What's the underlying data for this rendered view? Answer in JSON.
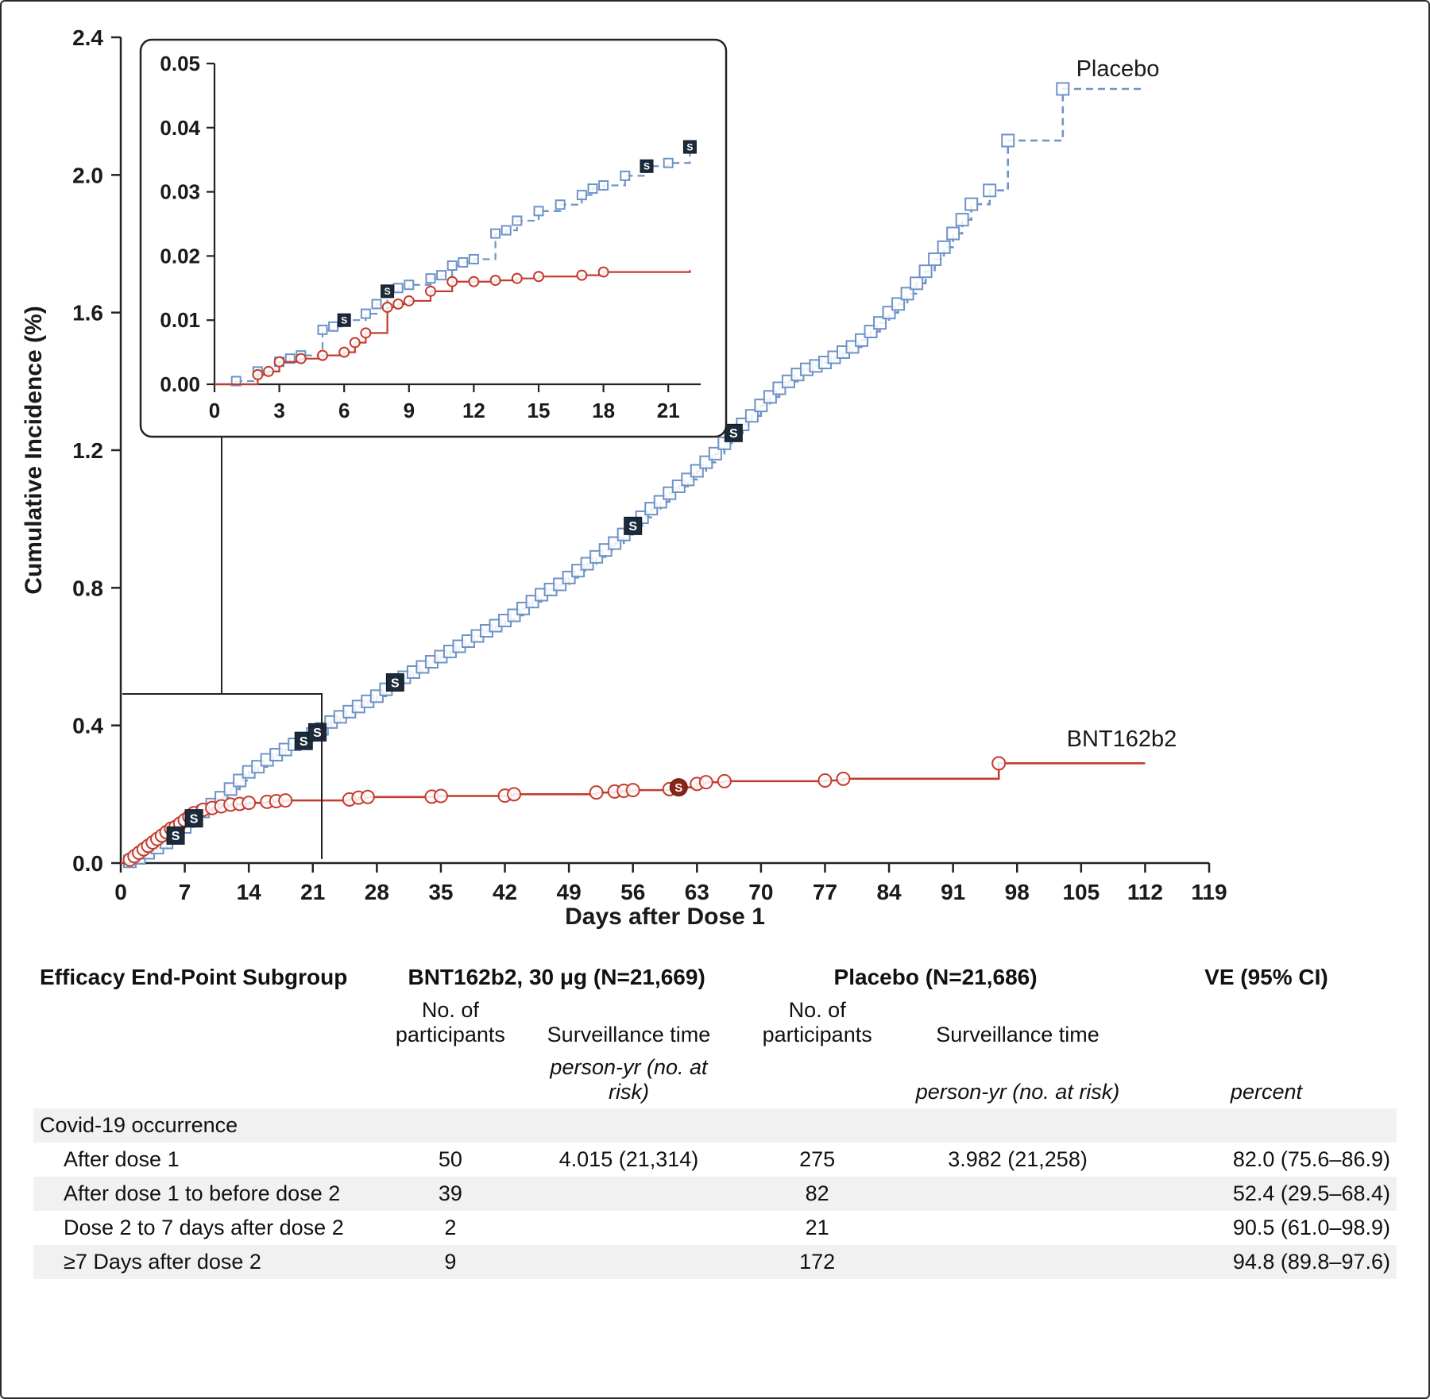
{
  "chart_data": {
    "type": "line",
    "title": "",
    "xlabel": "Days after Dose 1",
    "ylabel": "Cumulative Incidence (%)",
    "xlim": [
      0,
      119
    ],
    "ylim": [
      0,
      2.4
    ],
    "xticks": [
      0,
      7,
      14,
      21,
      28,
      35,
      42,
      49,
      56,
      63,
      70,
      77,
      84,
      91,
      98,
      105,
      112,
      119
    ],
    "yticks": [
      "0.0",
      "0.4",
      "0.8",
      "1.2",
      "1.6",
      "2.0",
      "2.4"
    ],
    "grid": false,
    "severe_marker_label": "S",
    "colors": {
      "placebo": "#6e93c6",
      "bnt": "#c43c2e",
      "severe_square": "#1c2b3a",
      "severe_circle": "#8a2619",
      "axis": "#222222"
    },
    "series": [
      {
        "name": "Placebo",
        "color": "#6e93c6",
        "line": "dashed",
        "marker": "square",
        "points": [
          [
            0,
            0
          ],
          [
            1,
            0.005
          ],
          [
            2,
            0.015
          ],
          [
            3,
            0.03
          ],
          [
            4,
            0.045
          ],
          [
            5,
            0.06
          ],
          [
            6,
            0.08
          ],
          [
            7,
            0.105
          ],
          [
            8,
            0.13
          ],
          [
            9,
            0.15
          ],
          [
            10,
            0.17
          ],
          [
            11,
            0.19
          ],
          [
            12,
            0.215
          ],
          [
            13,
            0.24
          ],
          [
            14,
            0.265
          ],
          [
            15,
            0.28
          ],
          [
            16,
            0.3
          ],
          [
            17,
            0.315
          ],
          [
            18,
            0.33
          ],
          [
            19,
            0.345
          ],
          [
            20,
            0.355
          ],
          [
            21,
            0.375
          ],
          [
            22,
            0.39
          ],
          [
            23,
            0.41
          ],
          [
            24,
            0.425
          ],
          [
            25,
            0.44
          ],
          [
            26,
            0.455
          ],
          [
            27,
            0.47
          ],
          [
            28,
            0.485
          ],
          [
            29,
            0.505
          ],
          [
            30,
            0.525
          ],
          [
            31,
            0.54
          ],
          [
            32,
            0.555
          ],
          [
            33,
            0.57
          ],
          [
            34,
            0.585
          ],
          [
            35,
            0.6
          ],
          [
            36,
            0.615
          ],
          [
            37,
            0.63
          ],
          [
            38,
            0.645
          ],
          [
            39,
            0.66
          ],
          [
            40,
            0.675
          ],
          [
            41,
            0.69
          ],
          [
            42,
            0.705
          ],
          [
            43,
            0.72
          ],
          [
            44,
            0.74
          ],
          [
            45,
            0.76
          ],
          [
            46,
            0.78
          ],
          [
            47,
            0.795
          ],
          [
            48,
            0.81
          ],
          [
            49,
            0.83
          ],
          [
            50,
            0.85
          ],
          [
            51,
            0.87
          ],
          [
            52,
            0.89
          ],
          [
            53,
            0.91
          ],
          [
            54,
            0.93
          ],
          [
            55,
            0.955
          ],
          [
            56,
            0.98
          ],
          [
            57,
            1.005
          ],
          [
            58,
            1.03
          ],
          [
            59,
            1.05
          ],
          [
            60,
            1.075
          ],
          [
            61,
            1.095
          ],
          [
            62,
            1.115
          ],
          [
            63,
            1.14
          ],
          [
            64,
            1.165
          ],
          [
            65,
            1.19
          ],
          [
            66,
            1.22
          ],
          [
            67,
            1.25
          ],
          [
            68,
            1.275
          ],
          [
            69,
            1.3
          ],
          [
            70,
            1.33
          ],
          [
            71,
            1.355
          ],
          [
            72,
            1.38
          ],
          [
            73,
            1.4
          ],
          [
            74,
            1.42
          ],
          [
            75,
            1.435
          ],
          [
            76,
            1.445
          ],
          [
            77,
            1.455
          ],
          [
            78,
            1.47
          ],
          [
            79,
            1.485
          ],
          [
            80,
            1.5
          ],
          [
            81,
            1.52
          ],
          [
            82,
            1.545
          ],
          [
            83,
            1.57
          ],
          [
            84,
            1.6
          ],
          [
            85,
            1.625
          ],
          [
            86,
            1.655
          ],
          [
            87,
            1.685
          ],
          [
            88,
            1.72
          ],
          [
            89,
            1.755
          ],
          [
            90,
            1.79
          ],
          [
            91,
            1.83
          ],
          [
            92,
            1.87
          ],
          [
            93,
            1.915
          ],
          [
            95,
            1.955
          ],
          [
            97,
            2.1
          ],
          [
            103,
            2.25
          ],
          [
            112,
            2.25
          ]
        ]
      },
      {
        "name": "BNT162b2",
        "color": "#c43c2e",
        "line": "solid",
        "marker": "circle",
        "points": [
          [
            0,
            0
          ],
          [
            1,
            0.01
          ],
          [
            1.5,
            0.02
          ],
          [
            2,
            0.03
          ],
          [
            2.5,
            0.04
          ],
          [
            3,
            0.05
          ],
          [
            3.5,
            0.06
          ],
          [
            4,
            0.07
          ],
          [
            4.5,
            0.08
          ],
          [
            5,
            0.09
          ],
          [
            5.5,
            0.1
          ],
          [
            6,
            0.105
          ],
          [
            6.5,
            0.115
          ],
          [
            7,
            0.125
          ],
          [
            7.5,
            0.135
          ],
          [
            8,
            0.145
          ],
          [
            9,
            0.155
          ],
          [
            10,
            0.16
          ],
          [
            11,
            0.165
          ],
          [
            12,
            0.17
          ],
          [
            13,
            0.172
          ],
          [
            14,
            0.175
          ],
          [
            16,
            0.178
          ],
          [
            17,
            0.18
          ],
          [
            18,
            0.182
          ],
          [
            25,
            0.185
          ],
          [
            26,
            0.19
          ],
          [
            27,
            0.192
          ],
          [
            34,
            0.193
          ],
          [
            35,
            0.195
          ],
          [
            42,
            0.196
          ],
          [
            43,
            0.2
          ],
          [
            52,
            0.205
          ],
          [
            54,
            0.208
          ],
          [
            55,
            0.21
          ],
          [
            56,
            0.212
          ],
          [
            60,
            0.215
          ],
          [
            61,
            0.22
          ],
          [
            63,
            0.23
          ],
          [
            64,
            0.235
          ],
          [
            66,
            0.238
          ],
          [
            77,
            0.24
          ],
          [
            79,
            0.245
          ],
          [
            96,
            0.29
          ],
          [
            112,
            0.29
          ]
        ]
      }
    ],
    "s_markers": {
      "placebo": [
        [
          6,
          0.08
        ],
        [
          8,
          0.13
        ],
        [
          20,
          0.355
        ],
        [
          21.5,
          0.38
        ],
        [
          30,
          0.525
        ],
        [
          56,
          0.98
        ],
        [
          67,
          1.25
        ]
      ],
      "bnt": [
        [
          61,
          0.22
        ]
      ]
    },
    "inset": {
      "xlim": [
        0,
        22.5
      ],
      "ylim": [
        0,
        0.05
      ],
      "xticks": [
        0,
        3,
        6,
        9,
        12,
        15,
        18,
        21
      ],
      "yticks": [
        "0.00",
        "0.01",
        "0.02",
        "0.03",
        "0.04",
        "0.05"
      ],
      "series": [
        {
          "name": "Placebo",
          "color": "#6e93c6",
          "line": "dashed",
          "marker": "square",
          "points": [
            [
              0,
              0
            ],
            [
              1,
              0.0005
            ],
            [
              2,
              0.002
            ],
            [
              3,
              0.0035
            ],
            [
              3.5,
              0.004
            ],
            [
              4,
              0.0045
            ],
            [
              5,
              0.0085
            ],
            [
              5.5,
              0.009
            ],
            [
              6,
              0.01
            ],
            [
              7,
              0.011
            ],
            [
              7.5,
              0.0125
            ],
            [
              8,
              0.0145
            ],
            [
              8.5,
              0.015
            ],
            [
              9,
              0.0155
            ],
            [
              10,
              0.0165
            ],
            [
              10.5,
              0.017
            ],
            [
              11,
              0.0185
            ],
            [
              11.5,
              0.019
            ],
            [
              12,
              0.0195
            ],
            [
              13,
              0.0235
            ],
            [
              13.5,
              0.024
            ],
            [
              14,
              0.0255
            ],
            [
              15,
              0.027
            ],
            [
              16,
              0.028
            ],
            [
              17,
              0.0295
            ],
            [
              17.5,
              0.0305
            ],
            [
              18,
              0.031
            ],
            [
              19,
              0.0325
            ],
            [
              20,
              0.034
            ],
            [
              21,
              0.0345
            ],
            [
              22,
              0.037
            ]
          ]
        },
        {
          "name": "BNT162b2",
          "color": "#c43c2e",
          "line": "solid",
          "marker": "circle",
          "points": [
            [
              0,
              0
            ],
            [
              2,
              0.0015
            ],
            [
              2.5,
              0.002
            ],
            [
              3,
              0.0035
            ],
            [
              4,
              0.004
            ],
            [
              5,
              0.0045
            ],
            [
              6,
              0.005
            ],
            [
              6.5,
              0.0065
            ],
            [
              7,
              0.008
            ],
            [
              8,
              0.012
            ],
            [
              8.5,
              0.0125
            ],
            [
              9,
              0.013
            ],
            [
              10,
              0.0145
            ],
            [
              11,
              0.016
            ],
            [
              12,
              0.016
            ],
            [
              13,
              0.0162
            ],
            [
              14,
              0.0165
            ],
            [
              15,
              0.0168
            ],
            [
              17,
              0.017
            ],
            [
              18,
              0.0175
            ],
            [
              22,
              0.0178
            ]
          ]
        }
      ],
      "s_markers": {
        "placebo": [
          [
            6,
            0.01
          ],
          [
            8,
            0.0145
          ],
          [
            20,
            0.034
          ],
          [
            22,
            0.037
          ]
        ],
        "bnt": []
      }
    }
  },
  "table": {
    "col1_header": "Efficacy End-Point Subgroup",
    "group_headers": {
      "bnt": "BNT162b2, 30 μg (N=21,669)",
      "placebo": "Placebo (N=21,686)",
      "ve": "VE (95% CI)"
    },
    "sub_headers": {
      "participants": "No. of participants",
      "surveillance": "Surveillance time"
    },
    "unit_headers": {
      "surveillance": "person-yr (no. at risk)",
      "ve": "percent"
    },
    "rows": [
      {
        "label": "Covid-19 occurrence"
      },
      {
        "label": "After dose 1",
        "bnt_n": "50",
        "bnt_surv": "4.015 (21,314)",
        "plc_n": "275",
        "plc_surv": "3.982 (21,258)",
        "ve": "82.0 (75.6–86.9)"
      },
      {
        "label": "After dose 1 to before dose 2",
        "bnt_n": "39",
        "bnt_surv": "",
        "plc_n": "82",
        "plc_surv": "",
        "ve": "52.4 (29.5–68.4)"
      },
      {
        "label": "Dose 2 to 7 days after dose 2",
        "bnt_n": "2",
        "bnt_surv": "",
        "plc_n": "21",
        "plc_surv": "",
        "ve": "90.5 (61.0–98.9)"
      },
      {
        "label": "≥7 Days after dose 2",
        "bnt_n": "9",
        "bnt_surv": "",
        "plc_n": "172",
        "plc_surv": "",
        "ve": "94.8 (89.8–97.6)"
      }
    ]
  }
}
